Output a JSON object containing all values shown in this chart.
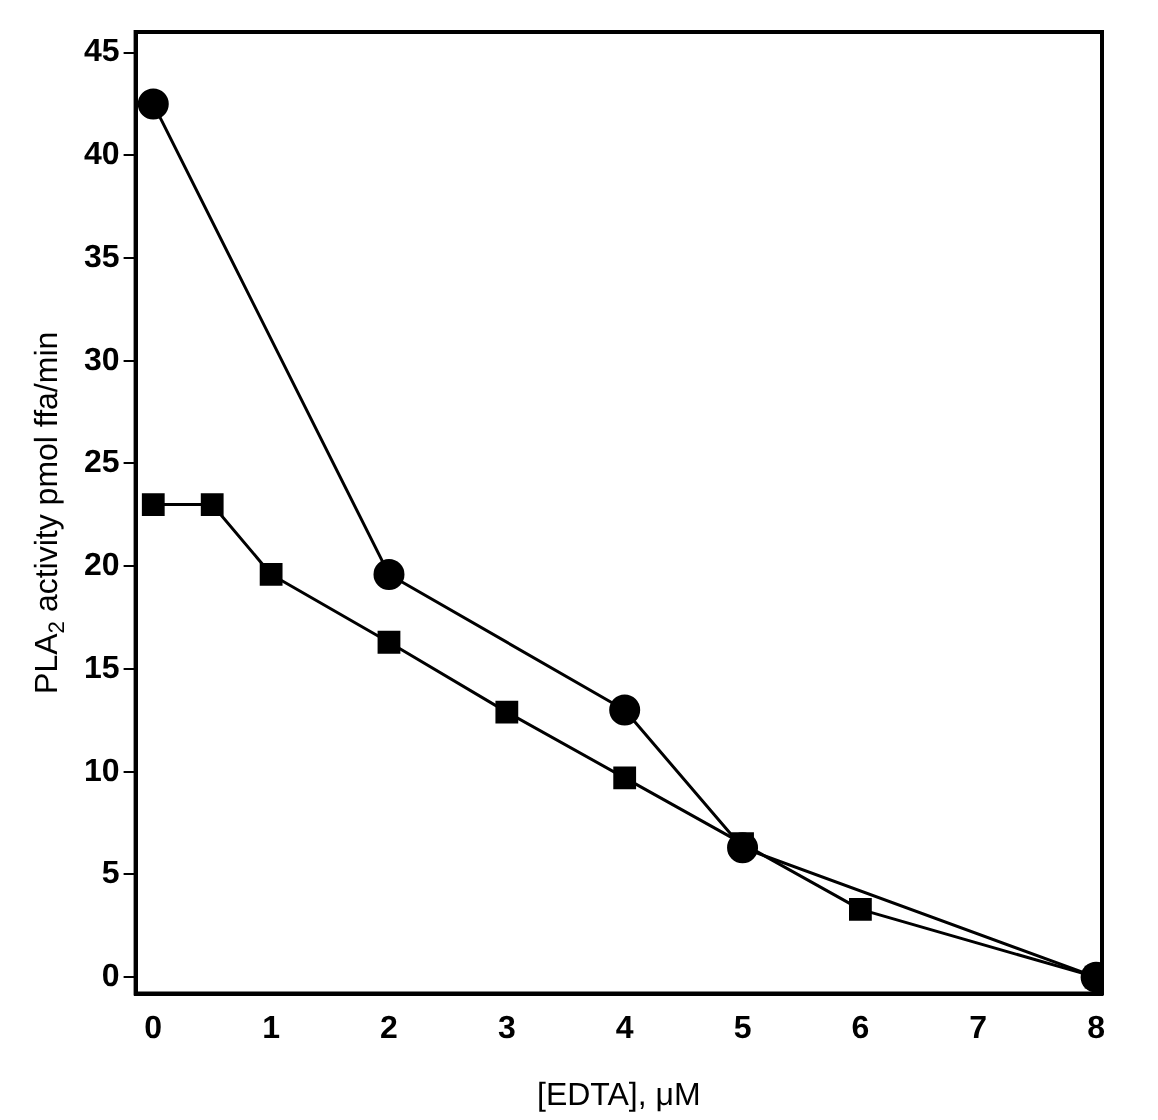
{
  "chart_data": {
    "type": "line",
    "xlabel": "[EDTA], μM",
    "ylabel": "PLA$_{2}$ activity pmol ffa/min",
    "xlim": [
      -0.15,
      8.05
    ],
    "ylim": [
      -0.8,
      46
    ],
    "xticks": [
      0,
      1,
      2,
      3,
      4,
      5,
      6,
      7,
      8
    ],
    "yticks": [
      0,
      5,
      10,
      15,
      20,
      25,
      30,
      35,
      40,
      45
    ],
    "grid": false,
    "legend": false,
    "line_style": "solid",
    "series": [
      {
        "color": "#000000",
        "marker": "circle",
        "x": [
          0,
          2,
          4,
          5,
          8
        ],
        "values": [
          42.5,
          19.6,
          13.0,
          6.3,
          0
        ]
      },
      {
        "color": "#000000",
        "marker": "square",
        "x": [
          0,
          0.5,
          1,
          2,
          3,
          4,
          5,
          6,
          8
        ],
        "values": [
          23.0,
          23.0,
          19.6,
          16.3,
          12.9,
          9.7,
          6.5,
          3.3,
          0
        ]
      }
    ]
  }
}
